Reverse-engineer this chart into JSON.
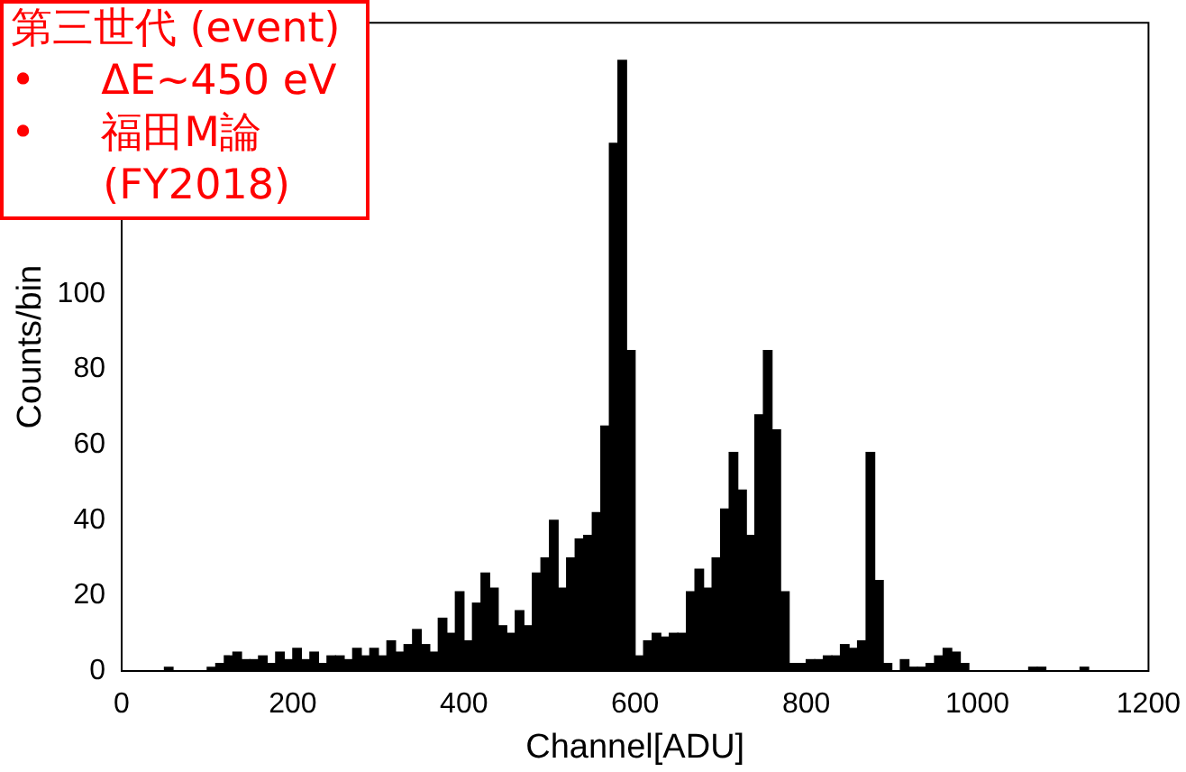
{
  "chart_data": {
    "type": "histogram",
    "xlabel": "Channel[ADU]",
    "ylabel": "Counts/bin",
    "annotations": [
      "第三世代 (event)",
      "•     ΔE~450 eV",
      "•     福田M論",
      "       (FY2018)"
    ],
    "color": "#000000",
    "bins": [
      0,
      10,
      20,
      30,
      40,
      50,
      60,
      70,
      80,
      90,
      100,
      110,
      120,
      130,
      140,
      150,
      160,
      170,
      180,
      190,
      200,
      210,
      220,
      230,
      240,
      250,
      260,
      270,
      280,
      290,
      300,
      310,
      320,
      330,
      340,
      350,
      360,
      370,
      380,
      390,
      400,
      410,
      420,
      430,
      440,
      450,
      460,
      470,
      480,
      490,
      500,
      510,
      520,
      530,
      540,
      550,
      560,
      570,
      580,
      590,
      600,
      610,
      620,
      630,
      640,
      650,
      660,
      670,
      680,
      690,
      700,
      710,
      720,
      730,
      740,
      750,
      760,
      770,
      780,
      790,
      800,
      810,
      820,
      830,
      840,
      850,
      860,
      870,
      880,
      890,
      900,
      910,
      920,
      930,
      940,
      950,
      960,
      970,
      980,
      990,
      1000,
      1010,
      1020,
      1030,
      1040,
      1050,
      1060,
      1070,
      1080,
      1090,
      1100,
      1110,
      1120,
      1130,
      1140,
      1150,
      1160,
      1170,
      1180,
      1190,
      1200
    ],
    "values": [
      0,
      0,
      0,
      0,
      0,
      1,
      0,
      0,
      0,
      0,
      1,
      2,
      4,
      5,
      3,
      3,
      4,
      2,
      5,
      3,
      6,
      3,
      5,
      2,
      4,
      4,
      3,
      6,
      4,
      6,
      4,
      8,
      5,
      7,
      11,
      7,
      5,
      14,
      10,
      21,
      8,
      18,
      26,
      22,
      12,
      10,
      16,
      12,
      26,
      30,
      40,
      22,
      30,
      35,
      36,
      42,
      65,
      140,
      162,
      85,
      4,
      8,
      10,
      9,
      10,
      10,
      21,
      27,
      22,
      30,
      43,
      58,
      48,
      36,
      68,
      85,
      64,
      21,
      2,
      2,
      3,
      3,
      4,
      4,
      7,
      6,
      8,
      58,
      24,
      2,
      0,
      3,
      1,
      1,
      2,
      4,
      6,
      5,
      2,
      0,
      0,
      0,
      0,
      0,
      0,
      0,
      1,
      1,
      0,
      0,
      0,
      0,
      1,
      0,
      0,
      0,
      0,
      0,
      0,
      0
    ],
    "xlim": [
      0,
      1200
    ],
    "ylim": [
      0,
      172
    ],
    "xticks": [
      0,
      200,
      400,
      600,
      800,
      1000,
      1200
    ],
    "yticks": [
      0,
      20,
      40,
      60,
      80,
      100
    ]
  }
}
